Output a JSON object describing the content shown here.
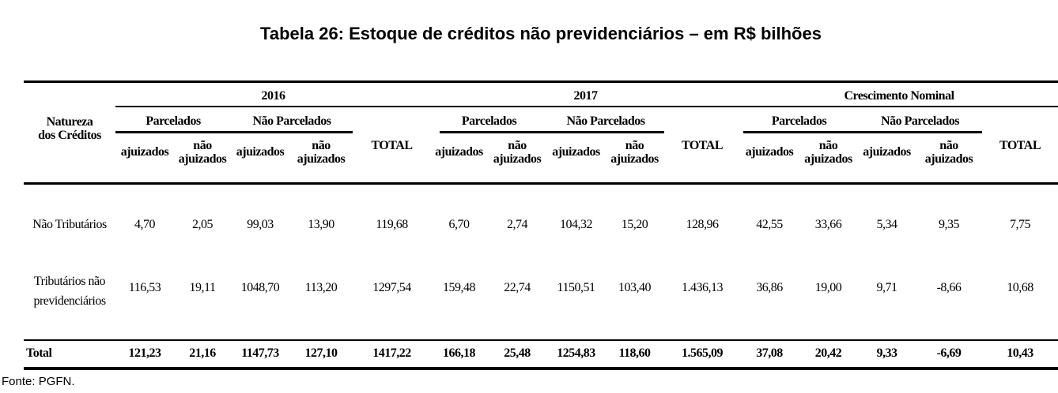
{
  "title": "Tabela 26: Estoque de créditos não previdenciários – em R$ bilhões",
  "header": {
    "natureza": [
      "Natureza",
      "dos Créditos"
    ],
    "groups": [
      "2016",
      "2017",
      "Crescimento Nominal"
    ],
    "subgroups": [
      "Parcelados",
      "Não Parcelados"
    ],
    "ajuizados": "ajuizados",
    "nao_ajuizados": [
      "não",
      "ajuizados"
    ],
    "total": "TOTAL"
  },
  "rows": [
    {
      "label": [
        "Não Tributários"
      ],
      "values": [
        "4,70",
        "2,05",
        "99,03",
        "13,90",
        "119,68",
        "6,70",
        "2,74",
        "104,32",
        "15,20",
        "128,96",
        "42,55",
        "33,66",
        "5,34",
        "9,35",
        "7,75"
      ]
    },
    {
      "label": [
        "Tributários não",
        "previdenciários"
      ],
      "values": [
        "116,53",
        "19,11",
        "1048,70",
        "113,20",
        "1297,54",
        "159,48",
        "22,74",
        "1150,51",
        "103,40",
        "1.436,13",
        "36,86",
        "19,00",
        "9,71",
        "-8,66",
        "10,68"
      ]
    }
  ],
  "total_row": {
    "label": "Total",
    "values": [
      "121,23",
      "21,16",
      "1147,73",
      "127,10",
      "1417,22",
      "166,18",
      "25,48",
      "1254,83",
      "118,60",
      "1.565,09",
      "37,08",
      "20,42",
      "9,33",
      "-6,69",
      "10,43"
    ]
  },
  "source": "Fonte: PGFN."
}
